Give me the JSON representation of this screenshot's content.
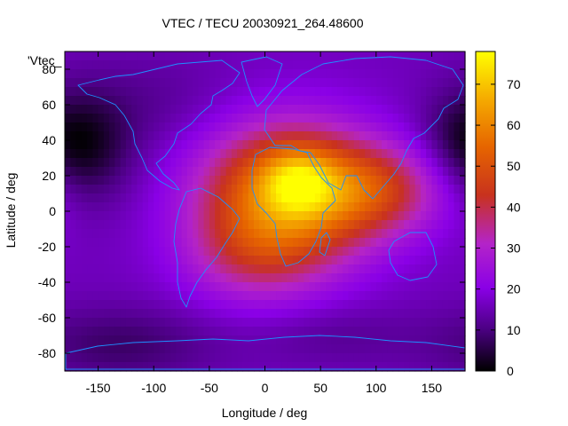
{
  "chart_data": {
    "type": "heatmap",
    "title": "VTEC / TECU 20030921_264.48600",
    "xlabel": "Longitude / deg",
    "ylabel": "Latitude / deg",
    "series_label": "'Vtec_",
    "xlim": [
      -180,
      180
    ],
    "ylim": [
      -90,
      90
    ],
    "x_ticks": [
      -150,
      -100,
      -50,
      0,
      50,
      100,
      150
    ],
    "y_ticks": [
      -80,
      -60,
      -40,
      -20,
      0,
      20,
      40,
      60,
      80
    ],
    "colorbar": {
      "min": 0,
      "max": 78,
      "ticks": [
        0,
        10,
        20,
        30,
        40,
        50,
        60,
        70
      ]
    },
    "grid": false,
    "colormap": "black-purple-red-yellow",
    "coastline_color": "#1e90ff",
    "value_model": {
      "background": 16,
      "features": [
        {
          "lon": 20,
          "lat": 10,
          "sigma_lon": 55,
          "sigma_lat": 28,
          "amp": 44
        },
        {
          "lon": 30,
          "lat": 17,
          "sigma_lon": 22,
          "sigma_lat": 12,
          "amp": 18
        },
        {
          "lon": -10,
          "lat": -25,
          "sigma_lon": 45,
          "sigma_lat": 20,
          "amp": 14
        },
        {
          "lon": 100,
          "lat": 12,
          "sigma_lon": 45,
          "sigma_lat": 18,
          "amp": 22
        },
        {
          "lon": -160,
          "lat": 35,
          "sigma_lon": 30,
          "sigma_lat": 22,
          "amp": -12
        },
        {
          "lon": 170,
          "lat": 40,
          "sigma_lon": 25,
          "sigma_lat": 18,
          "amp": -6
        },
        {
          "lon": -130,
          "lat": -75,
          "sigma_lon": 60,
          "sigma_lat": 15,
          "amp": -8
        },
        {
          "lon": 60,
          "lat": -70,
          "sigma_lon": 50,
          "sigma_lat": 12,
          "amp": -4
        },
        {
          "lon": -100,
          "lat": 60,
          "sigma_lon": 60,
          "sigma_lat": 20,
          "amp": -4
        }
      ]
    }
  }
}
